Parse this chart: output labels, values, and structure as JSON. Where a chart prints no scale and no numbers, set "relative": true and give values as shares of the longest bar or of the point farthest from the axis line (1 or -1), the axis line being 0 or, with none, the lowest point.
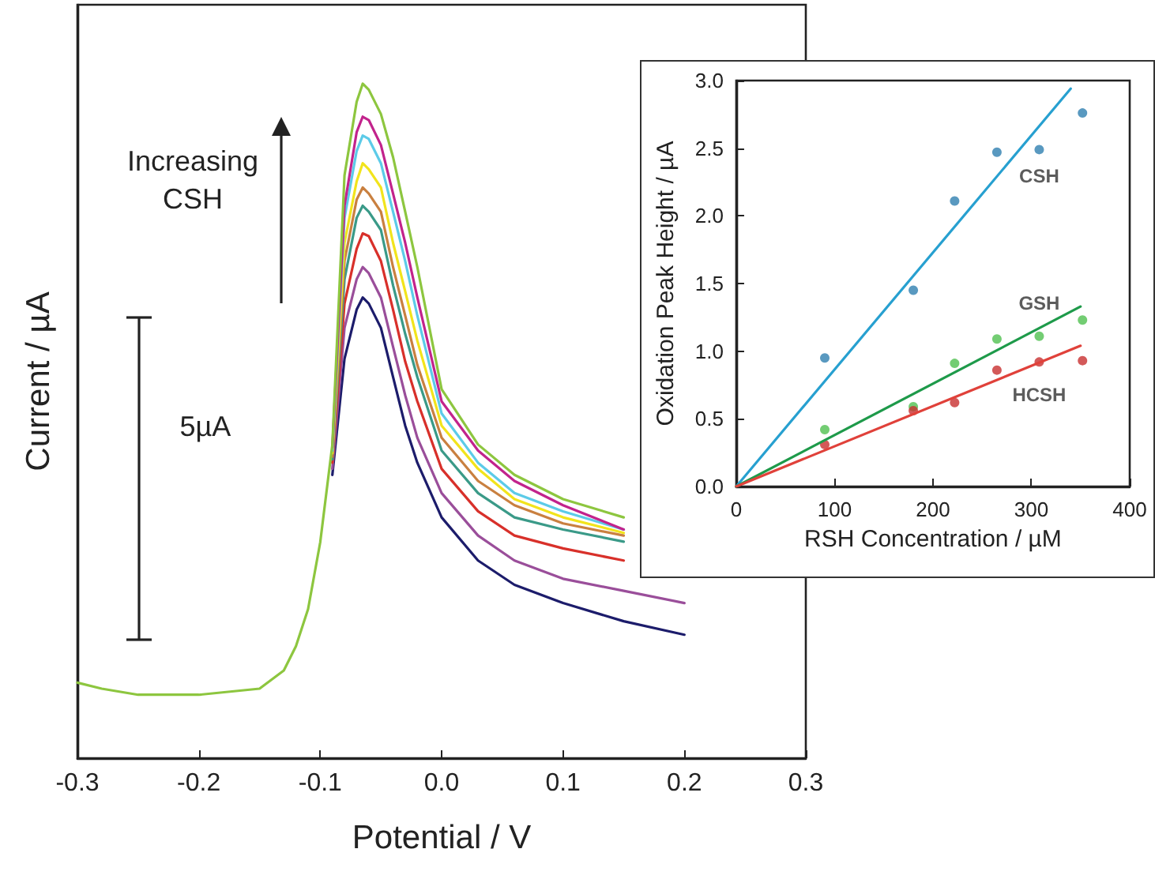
{
  "chart_data": [
    {
      "type": "line",
      "xlabel": "Potential / V",
      "ylabel": "Current / µA",
      "relative": true,
      "tick_labels": "x",
      "annotations": [
        "Increasing CSH",
        "5µA"
      ],
      "xlim": [
        -0.3,
        0.3
      ],
      "xticks": [
        -0.3,
        -0.2,
        -0.1,
        {
          "value": 0,
          "label": "0.0"
        },
        0.1,
        0.2,
        0.3
      ],
      "x": [
        -0.3,
        -0.28,
        -0.25,
        -0.2,
        -0.15,
        -0.13,
        -0.12,
        -0.11,
        -0.1,
        -0.09,
        -0.08,
        -0.07,
        -0.065,
        -0.06,
        -0.05,
        -0.04,
        -0.03,
        -0.02,
        0,
        0.03,
        0.06,
        0.1,
        0.15,
        0.2
      ],
      "series": [
        {
          "color": "#1c1c6b",
          "values": [
            null,
            null,
            null,
            null,
            null,
            null,
            null,
            null,
            null,
            0.42,
            0.592,
            0.665,
            0.683,
            0.674,
            0.638,
            0.565,
            0.493,
            0.438,
            0.357,
            0.293,
            0.257,
            0.23,
            0.203,
            0.183
          ]
        },
        {
          "color": "#9a4e9a",
          "values": [
            null,
            null,
            null,
            null,
            null,
            null,
            null,
            null,
            null,
            0.429,
            0.638,
            0.71,
            0.728,
            0.719,
            0.683,
            0.61,
            0.538,
            0.475,
            0.393,
            0.33,
            0.293,
            0.266,
            0.248,
            0.23
          ]
        },
        {
          "color": "#d8302a",
          "values": [
            null,
            null,
            null,
            null,
            null,
            null,
            null,
            null,
            null,
            0.438,
            0.674,
            0.755,
            0.778,
            0.774,
            0.737,
            0.665,
            0.588,
            0.529,
            0.429,
            0.366,
            0.33,
            0.311,
            0.293,
            null
          ]
        },
        {
          "color": "#3a9a88",
          "values": [
            null,
            null,
            null,
            null,
            null,
            null,
            null,
            null,
            null,
            0.443,
            0.71,
            0.801,
            0.819,
            0.81,
            0.783,
            0.701,
            0.629,
            0.565,
            0.456,
            0.393,
            0.357,
            0.339,
            0.321,
            null
          ]
        },
        {
          "color": "#c98040",
          "values": [
            null,
            null,
            null,
            null,
            null,
            null,
            null,
            null,
            null,
            0.447,
            0.737,
            0.828,
            0.846,
            0.837,
            0.81,
            0.728,
            0.656,
            0.583,
            0.475,
            0.411,
            0.375,
            0.348,
            0.33,
            null
          ]
        },
        {
          "color": "#f2e41c",
          "values": [
            null,
            null,
            null,
            null,
            null,
            null,
            null,
            null,
            null,
            0.452,
            0.764,
            0.855,
            0.882,
            0.873,
            0.846,
            0.764,
            0.692,
            0.619,
            0.493,
            0.429,
            0.384,
            0.357,
            0.334,
            null
          ]
        },
        {
          "color": "#5ccbe8",
          "values": [
            null,
            null,
            null,
            null,
            null,
            null,
            null,
            null,
            null,
            0.456,
            0.801,
            0.9,
            0.923,
            0.918,
            0.882,
            0.81,
            0.737,
            0.656,
            0.511,
            0.438,
            0.393,
            0.366,
            0.339,
            null
          ]
        },
        {
          "color": "#c2238c",
          "values": [
            null,
            null,
            null,
            null,
            null,
            null,
            null,
            null,
            null,
            0.461,
            0.819,
            0.928,
            0.951,
            0.946,
            0.909,
            0.837,
            0.764,
            0.683,
            0.529,
            0.456,
            0.411,
            0.375,
            0.339,
            null
          ]
        },
        {
          "color": "#8dc63f",
          "values": [
            0.112,
            0.103,
            0.094,
            0.094,
            0.103,
            0.13,
            0.166,
            0.221,
            0.32,
            0.465,
            0.864,
            0.973,
            1,
            0.991,
            0.955,
            0.891,
            0.81,
            0.728,
            0.547,
            0.465,
            0.42,
            0.384,
            0.357,
            null
          ]
        }
      ]
    },
    {
      "type": "scatter",
      "xlabel": "RSH Concentration / µM",
      "ylabel": "Oxidation Peak Height / µA",
      "marker": "circle",
      "xlim": [
        0,
        400
      ],
      "xticks": [
        0,
        100,
        200,
        300,
        400
      ],
      "ylim": [
        0,
        3
      ],
      "yticks": [
        {
          "value": 0,
          "label": "0.0"
        },
        0.5,
        {
          "value": 1,
          "label": "1.0"
        },
        1.5,
        {
          "value": 2,
          "label": "2.0"
        },
        2.5,
        {
          "value": 3,
          "label": "3.0"
        }
      ],
      "series": [
        {
          "type": "line",
          "marker": "none",
          "color": "#27a0d0",
          "x": [
            0,
            340
          ],
          "values": [
            0,
            2.94
          ]
        },
        {
          "type": "line",
          "marker": "none",
          "color": "#1e9a4a",
          "x": [
            0,
            350
          ],
          "values": [
            0,
            1.33
          ]
        },
        {
          "type": "line",
          "marker": "none",
          "color": "#e0413a",
          "x": [
            0,
            350
          ],
          "values": [
            0,
            1.04
          ]
        },
        {
          "name": "CSH",
          "color": "#2f7fb0",
          "x": [
            90,
            180,
            222,
            265,
            308,
            352
          ],
          "values": [
            0.95,
            1.45,
            2.11,
            2.47,
            2.49,
            2.76
          ]
        },
        {
          "name": "GSH",
          "color": "#50c050",
          "x": [
            90,
            180,
            222,
            265,
            308,
            352
          ],
          "values": [
            0.42,
            0.59,
            0.91,
            1.09,
            1.11,
            1.23
          ]
        },
        {
          "name": "HCSH",
          "color": "#c83030",
          "x": [
            90,
            180,
            222,
            265,
            308,
            352
          ],
          "values": [
            0.31,
            0.56,
            0.62,
            0.86,
            0.92,
            0.93
          ]
        }
      ]
    }
  ]
}
